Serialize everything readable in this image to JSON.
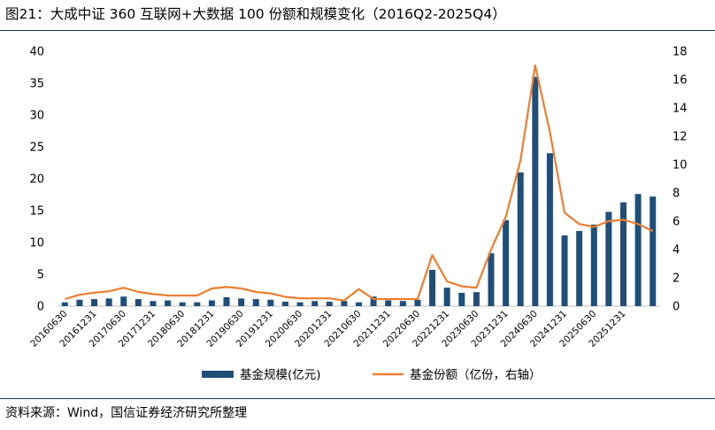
{
  "title": "图21：大成中证 360 互联网+大数据 100 份额和规模变化（2016Q2-2025Q4）",
  "source": "资料来源：Wind，国信证券经济研究所整理",
  "colors": {
    "bar": "#1f4e79",
    "line": "#ed7d31",
    "rule": "#1f3864"
  },
  "chart_data": {
    "type": "bar+line",
    "x_tick_labels": [
      "20160630",
      "20161231",
      "20170630",
      "20171231",
      "20180630",
      "20181231",
      "20190630",
      "20191231",
      "20200630",
      "20201231",
      "20210630",
      "20211231",
      "20220630",
      "20221231",
      "20230630",
      "20231231",
      "20240630",
      "20241231",
      "20250630",
      "20251231"
    ],
    "left_axis": {
      "ylim": [
        0,
        40
      ],
      "ticks": [
        "0",
        "5",
        "10",
        "15",
        "20",
        "25",
        "30",
        "35",
        "40"
      ]
    },
    "right_axis": {
      "ylim": [
        0,
        18
      ],
      "ticks": [
        "0",
        "2",
        "4",
        "6",
        "8",
        "10",
        "12",
        "14",
        "16",
        "18"
      ]
    },
    "series": [
      {
        "name": "基金规模(亿元)",
        "type": "bar",
        "axis": "left",
        "values": [
          0.6,
          1.0,
          1.1,
          1.2,
          1.5,
          1.1,
          0.8,
          0.9,
          0.6,
          0.6,
          0.9,
          1.4,
          1.2,
          1.1,
          1.0,
          0.7,
          0.6,
          0.8,
          0.7,
          0.8,
          0.6,
          1.5,
          0.9,
          0.8,
          1.0,
          5.7,
          2.9,
          2.1,
          2.2,
          8.3,
          13.5,
          21.0,
          36.0,
          24.0,
          11.1,
          11.8,
          12.8,
          14.8,
          16.3,
          17.6,
          17.2
        ]
      },
      {
        "name": "基金份额（亿份，右轴）",
        "type": "line",
        "axis": "right",
        "values": [
          0.5,
          0.8,
          0.95,
          1.05,
          1.3,
          1.0,
          0.85,
          0.75,
          0.75,
          0.75,
          1.25,
          1.35,
          1.25,
          1.0,
          0.9,
          0.65,
          0.55,
          0.55,
          0.55,
          0.4,
          1.2,
          0.5,
          0.5,
          0.5,
          0.5,
          3.6,
          1.75,
          1.4,
          1.3,
          4.0,
          6.3,
          10.3,
          17.0,
          12.3,
          6.6,
          5.8,
          5.6,
          6.0,
          6.1,
          5.8,
          5.3
        ]
      }
    ]
  }
}
